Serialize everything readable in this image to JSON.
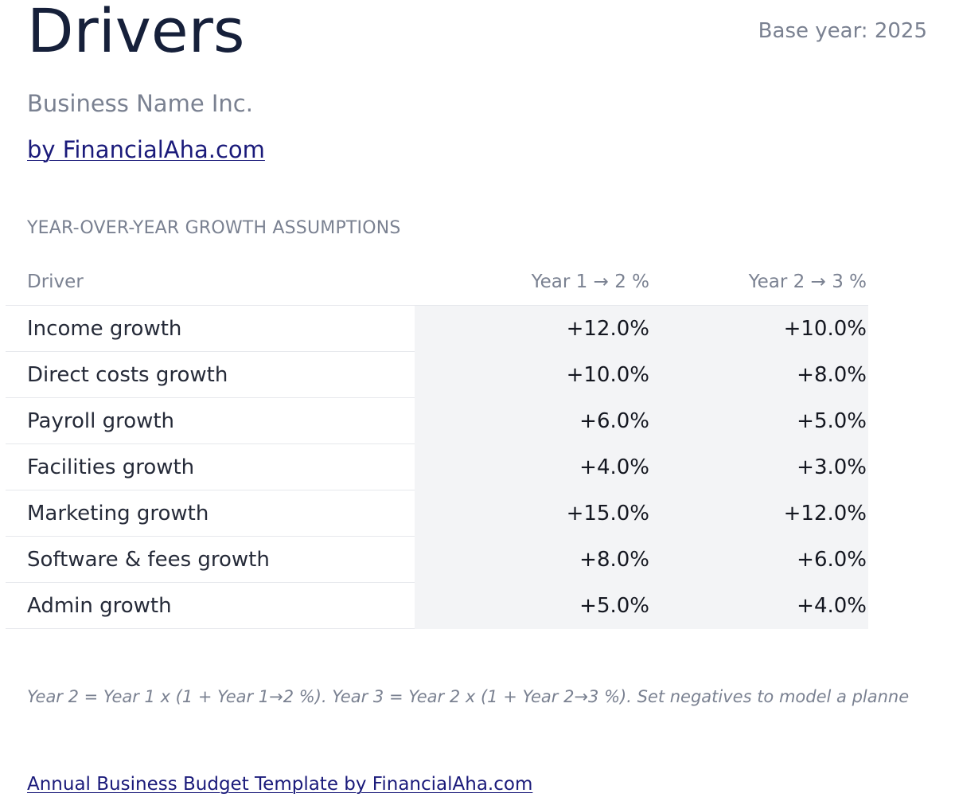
{
  "header": {
    "title": "Drivers",
    "base_year": "Base year: 2025",
    "business_name": "Business Name Inc.",
    "byline": "by FinancialAha.com"
  },
  "section": {
    "title": "YEAR-OVER-YEAR GROWTH ASSUMPTIONS"
  },
  "table": {
    "columns": [
      "Driver",
      "Year 1 → 2 %",
      "Year 2 → 3 %"
    ],
    "rows": [
      {
        "driver": "Income growth",
        "y1_to_y2": "+12.0%",
        "y2_to_y3": "+10.0%"
      },
      {
        "driver": "Direct costs growth",
        "y1_to_y2": "+10.0%",
        "y2_to_y3": "+8.0%"
      },
      {
        "driver": "Payroll growth",
        "y1_to_y2": "+6.0%",
        "y2_to_y3": "+5.0%"
      },
      {
        "driver": "Facilities growth",
        "y1_to_y2": "+4.0%",
        "y2_to_y3": "+3.0%"
      },
      {
        "driver": "Marketing growth",
        "y1_to_y2": "+15.0%",
        "y2_to_y3": "+12.0%"
      },
      {
        "driver": "Software & fees growth",
        "y1_to_y2": "+8.0%",
        "y2_to_y3": "+6.0%"
      },
      {
        "driver": "Admin growth",
        "y1_to_y2": "+5.0%",
        "y2_to_y3": "+4.0%"
      }
    ]
  },
  "note": "Year 2 = Year 1 x (1 + Year 1→2 %). Year 3 = Year 2 x (1 + Year 2→3 %). Set negatives to model a planne",
  "footer": {
    "link": "Annual Business Budget Template by FinancialAha.com"
  },
  "colors": {
    "title": "#16203a",
    "muted": "#7a8191",
    "link": "#1a1a7a",
    "input_fill": "#f3f4f6"
  }
}
